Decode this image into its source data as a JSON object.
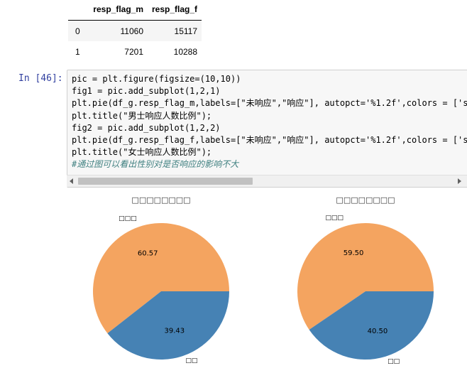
{
  "dataframe": {
    "columns": [
      "",
      "resp_flag_m",
      "resp_flag_f"
    ],
    "rows": [
      {
        "index": "0",
        "resp_flag_m": "11060",
        "resp_flag_f": "15117"
      },
      {
        "index": "1",
        "resp_flag_m": "7201",
        "resp_flag_f": "10288"
      }
    ]
  },
  "cell": {
    "prompt": "In  [46]:",
    "code_lines": [
      "pic = plt.figure(figsize=(10,10))",
      "fig1 = pic.add_subplot(1,2,1)",
      "plt.pie(df_g.resp_flag_m,labels=[\"未响应\",\"响应\"], autopct='%1.2f',colors = ['s",
      "plt.title(\"男士响应人数比例\");",
      "fig2 = pic.add_subplot(1,2,2)",
      "plt.pie(df_g.resp_flag_f,labels=[\"未响应\",\"响应\"], autopct='%1.2f',colors = ['s",
      "plt.title(\"女士响应人数比例\");",
      "#通过图可以看出性别对是否响应的影响不大"
    ]
  },
  "colors": {
    "sandybrown": "#f4a460",
    "steelblue": "#4682b4"
  },
  "chart_data": [
    {
      "type": "pie",
      "title": "□□□□□□□□",
      "categories": [
        "□□□",
        "□□"
      ],
      "values": [
        60.57,
        39.43
      ],
      "value_labels": [
        "60.57",
        "39.43"
      ],
      "colors": [
        "#f4a460",
        "#4682b4"
      ]
    },
    {
      "type": "pie",
      "title": "□□□□□□□□",
      "categories": [
        "□□□",
        "□□"
      ],
      "values": [
        59.5,
        40.5
      ],
      "value_labels": [
        "59.50",
        "40.50"
      ],
      "colors": [
        "#f4a460",
        "#4682b4"
      ]
    }
  ]
}
